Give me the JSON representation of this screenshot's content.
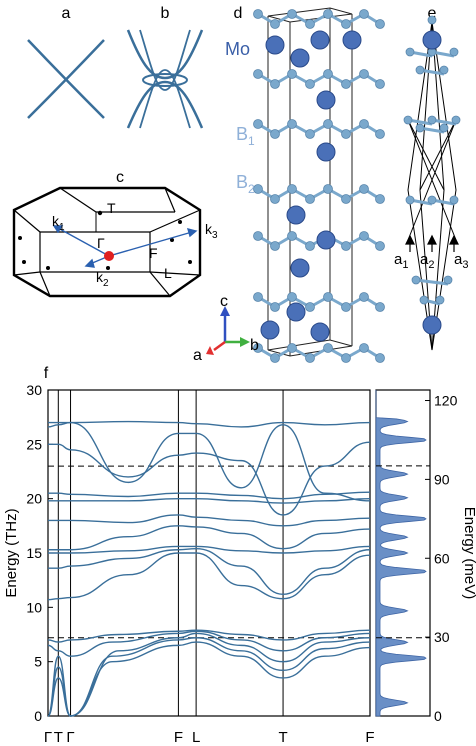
{
  "panels": {
    "a": "a",
    "b": "b",
    "c": "c",
    "d": "d",
    "e": "e",
    "f": "f"
  },
  "bz_labels": {
    "k1": "k",
    "k1_sub": "1",
    "k2": "k",
    "k2_sub": "2",
    "k3": "k",
    "k3_sub": "3",
    "gamma": "Γ",
    "T": "T",
    "F": "F",
    "L": "L"
  },
  "crystal_labels": {
    "Mo": "Mo",
    "B1": "B",
    "B1_sub": "1",
    "B2": "B",
    "B2_sub": "2"
  },
  "lattice_labels": {
    "a1": "a",
    "a1_sub": "1",
    "a2": "a",
    "a2_sub": "2",
    "a3": "a",
    "a3_sub": "3"
  },
  "axes_triad": {
    "a": "a",
    "b": "b",
    "c": "c"
  },
  "colors": {
    "band": "#3a6f9a",
    "mo_atom": "#4a70b8",
    "b_atom": "#7aa8cc",
    "b_label": "#8fb0d8",
    "dos_fill": "#6a8fc6",
    "gamma_dot": "#e02020",
    "triad_a": "#e23030",
    "triad_b": "#40b040",
    "triad_c": "#3050c0"
  },
  "chart_data": {
    "type": "line",
    "ylabel": "Energy (THz)",
    "ylabel_right": "Energy (meV)",
    "ylim": [
      0,
      30
    ],
    "yticks": [
      "0",
      "5",
      "10",
      "15",
      "20",
      "25",
      "30"
    ],
    "ylim_right": [
      0,
      124
    ],
    "yticks_right": [
      "0",
      "30",
      "60",
      "90",
      "120"
    ],
    "k_path": [
      "Γ",
      "T",
      "Γ",
      "F",
      "L",
      "T",
      "F"
    ],
    "k_positions": [
      0,
      0.032,
      0.07,
      0.405,
      0.46,
      0.73,
      1.0
    ],
    "dashed_lines_thz": [
      23.0,
      7.2
    ],
    "dos_peaks_meV": [
      5,
      22,
      28,
      40,
      55,
      62,
      68,
      75,
      83,
      92,
      105,
      112
    ]
  }
}
